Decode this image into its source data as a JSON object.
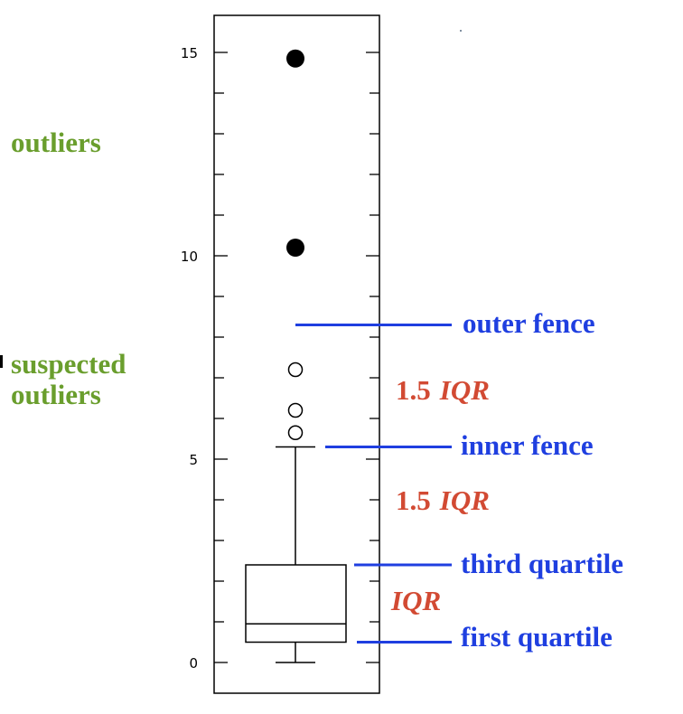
{
  "chart_data": {
    "type": "boxplot",
    "ylim": [
      0,
      15
    ],
    "yticks": [
      0,
      5,
      10,
      15
    ],
    "ytick_labels": [
      "0",
      "5",
      "10",
      "15"
    ],
    "box": {
      "min": 0,
      "q1": 0.5,
      "median": 0.95,
      "q3": 2.4,
      "whisker_high": 5.3
    },
    "fences": {
      "inner": 5.3,
      "outer": 8.3
    },
    "suspected_outliers": [
      5.65,
      6.2,
      7.2
    ],
    "outliers": [
      10.2,
      14.85
    ],
    "annotations": {
      "outliers": "outliers",
      "suspected_line1": "suspected",
      "suspected_line2": "outliers",
      "outer_fence": "outer fence",
      "inner_fence": "inner fence",
      "third_quartile": "third quartile",
      "first_quartile": "first quartile",
      "iqr_upper_num": "1.5",
      "iqr_upper": "IQR",
      "iqr_lower_num": "1.5",
      "iqr_lower": "IQR",
      "iqr": "IQR"
    },
    "colors": {
      "annotation_green": "#6a9e2d",
      "annotation_blue": "#1f3fe0",
      "annotation_red": "#d24a33",
      "ink": "#000000"
    }
  }
}
